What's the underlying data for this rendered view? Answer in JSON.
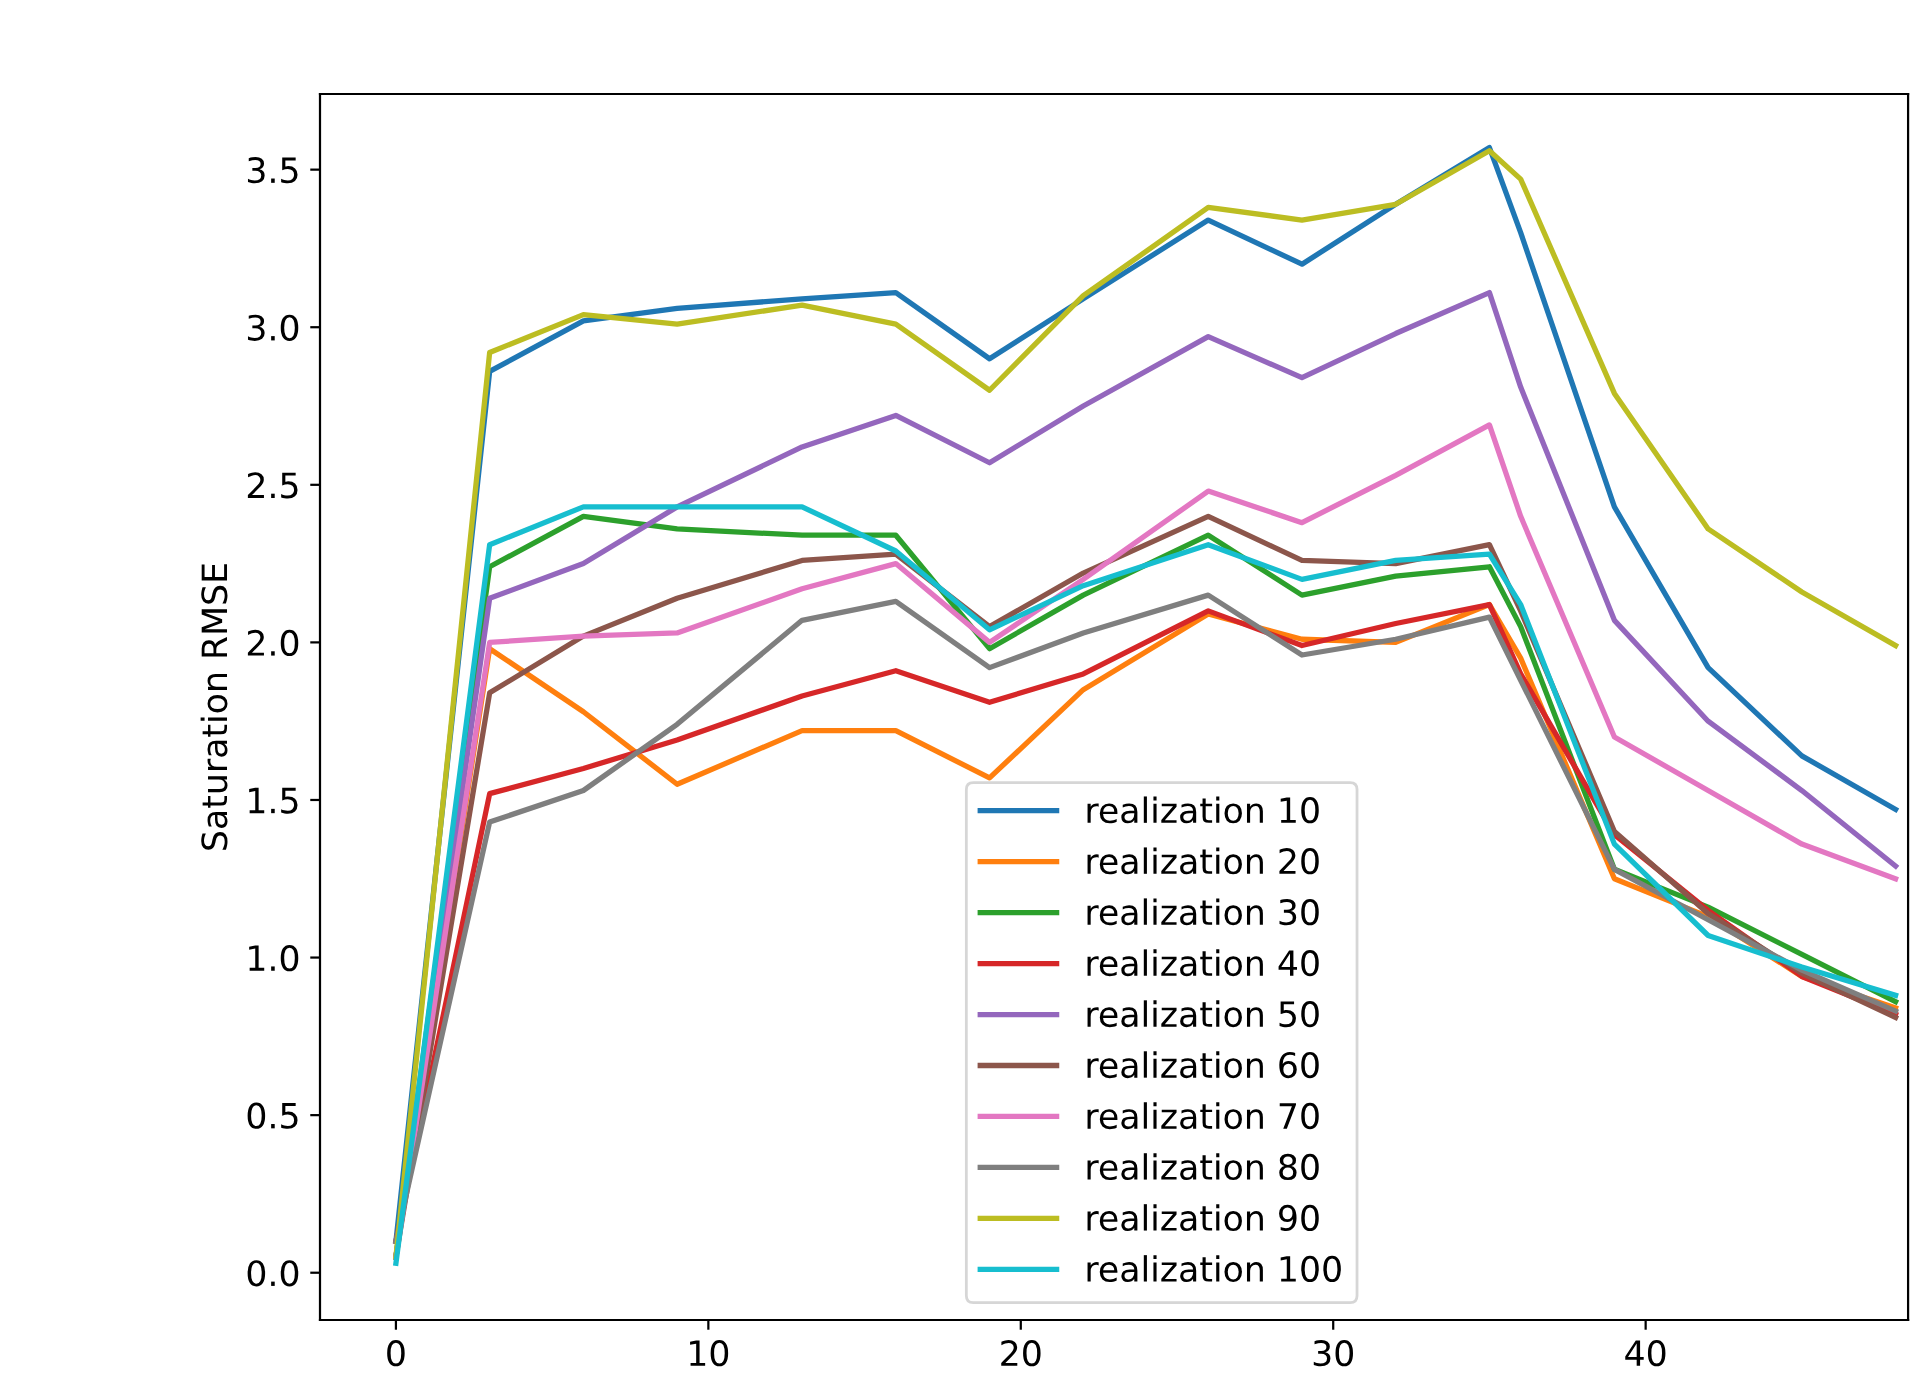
{
  "chart_data": {
    "type": "line",
    "ylabel": "Saturation RMSE",
    "x": [
      0,
      3,
      6,
      9,
      13,
      16,
      19,
      22,
      26,
      29,
      32,
      35,
      36,
      39,
      42,
      45,
      48
    ],
    "xlim": [
      -2.43,
      48.4
    ],
    "xticks": [
      0,
      10,
      20,
      30,
      40
    ],
    "ylim": [
      -0.15,
      3.74
    ],
    "yticks": [
      {
        "value": 0,
        "label": "0.0"
      },
      0.5,
      {
        "value": 1,
        "label": "1.0"
      },
      1.5,
      {
        "value": 2,
        "label": "2.0"
      },
      2.5,
      {
        "value": 3,
        "label": "3.0"
      },
      3.5
    ],
    "grid": false,
    "legend": "bottom",
    "marker": "none",
    "line_style": "solid",
    "series": [
      {
        "name": "realization 10",
        "color": "#1f77b4",
        "values": [
          0.1,
          2.86,
          3.02,
          3.06,
          3.09,
          3.11,
          2.9,
          3.09,
          3.34,
          3.2,
          3.39,
          3.57,
          3.3,
          2.43,
          1.92,
          1.64,
          1.47
        ]
      },
      {
        "name": "realization 20",
        "color": "#ff7f0e",
        "values": [
          0.05,
          1.98,
          1.78,
          1.55,
          1.72,
          1.72,
          1.57,
          1.85,
          2.09,
          2.01,
          2.0,
          2.12,
          1.95,
          1.25,
          1.13,
          0.94,
          0.84
        ]
      },
      {
        "name": "realization 30",
        "color": "#2ca02c",
        "values": [
          0.05,
          2.24,
          2.4,
          2.36,
          2.34,
          2.34,
          1.98,
          2.15,
          2.34,
          2.15,
          2.21,
          2.24,
          2.05,
          1.28,
          1.16,
          1.01,
          0.86
        ]
      },
      {
        "name": "realization 40",
        "color": "#d62728",
        "values": [
          0.1,
          1.52,
          1.6,
          1.69,
          1.83,
          1.91,
          1.81,
          1.9,
          2.1,
          1.99,
          2.06,
          2.12,
          1.9,
          1.39,
          1.15,
          0.94,
          0.82
        ]
      },
      {
        "name": "realization 50",
        "color": "#9467bd",
        "values": [
          0.05,
          2.14,
          2.25,
          2.43,
          2.62,
          2.72,
          2.57,
          2.75,
          2.97,
          2.84,
          2.98,
          3.11,
          2.81,
          2.07,
          1.75,
          1.53,
          1.29
        ]
      },
      {
        "name": "realization 60",
        "color": "#8c564b",
        "values": [
          0.05,
          1.84,
          2.02,
          2.14,
          2.26,
          2.28,
          2.05,
          2.22,
          2.4,
          2.26,
          2.25,
          2.31,
          2.1,
          1.4,
          1.14,
          0.95,
          0.81
        ]
      },
      {
        "name": "realization 70",
        "color": "#e377c2",
        "values": [
          0.05,
          2.0,
          2.02,
          2.03,
          2.17,
          2.25,
          2.0,
          2.2,
          2.48,
          2.38,
          2.53,
          2.69,
          2.4,
          1.7,
          1.53,
          1.36,
          1.25
        ]
      },
      {
        "name": "realization 80",
        "color": "#7f7f7f",
        "values": [
          0.1,
          1.43,
          1.53,
          1.74,
          2.07,
          2.13,
          1.92,
          2.03,
          2.15,
          1.96,
          2.01,
          2.08,
          1.88,
          1.28,
          1.12,
          0.96,
          0.83
        ]
      },
      {
        "name": "realization 90",
        "color": "#bcbd22",
        "values": [
          0.05,
          2.92,
          3.04,
          3.01,
          3.07,
          3.01,
          2.8,
          3.1,
          3.38,
          3.34,
          3.39,
          3.56,
          3.47,
          2.79,
          2.36,
          2.16,
          1.99
        ]
      },
      {
        "name": "realization 100",
        "color": "#17becf",
        "values": [
          0.03,
          2.31,
          2.43,
          2.43,
          2.43,
          2.29,
          2.04,
          2.18,
          2.31,
          2.2,
          2.26,
          2.28,
          2.12,
          1.36,
          1.07,
          0.97,
          0.88
        ]
      }
    ]
  }
}
